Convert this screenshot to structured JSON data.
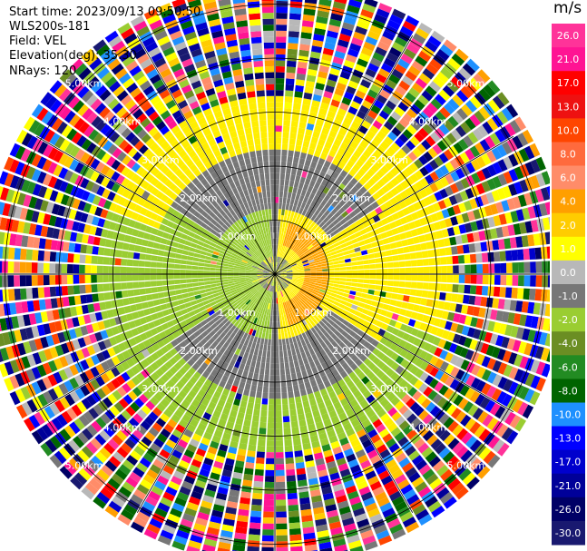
{
  "header": {
    "start_time": "Start time: 2023/09/13 09:50:50",
    "site": "WLS200s-181",
    "field": "Field: VEL",
    "elevation": "Elevation(deg): 35.30",
    "nrays": "NRays: 120"
  },
  "colorbar": {
    "unit": "m/s",
    "labels": [
      "26.0",
      "21.0",
      "17.0",
      "13.0",
      "10.0",
      "8.0",
      "6.0",
      "4.0",
      "2.0",
      "1.0",
      "0.0",
      "-1.0",
      "-2.0",
      "-4.0",
      "-6.0",
      "-8.0",
      "-10.0",
      "-13.0",
      "-17.0",
      "-21.0",
      "-26.0",
      "-30.0"
    ],
    "colors": [
      "#ff3399",
      "#ff1493",
      "#ff0000",
      "#ee1111",
      "#ff4500",
      "#ff6a3d",
      "#ff8c69",
      "#ff9f00",
      "#ffcc00",
      "#ffff00",
      "#b8b8b8",
      "#777777",
      "#9acd32",
      "#6b8e23",
      "#228b22",
      "#006400",
      "#1e90ff",
      "#0000ff",
      "#0000cd",
      "#000099",
      "#000066",
      "#191970"
    ]
  },
  "chart_data": {
    "type": "heatmap",
    "projection": "PPI (polar)",
    "field": "VEL",
    "unit": "m/s",
    "n_rays": 120,
    "range_rings_km": [
      1.0,
      2.0,
      3.0,
      4.0,
      5.0
    ],
    "ring_labels": [
      "1.00km",
      "2.00km",
      "3.00km",
      "4.00km",
      "5.00km"
    ],
    "value_range": [
      -30.0,
      26.0
    ],
    "field_summary": [
      {
        "range_km": [
          0.0,
          0.3
        ],
        "direction": "all",
        "value": 0.0
      },
      {
        "range_km": [
          0.3,
          2.4
        ],
        "direction": "east",
        "value": 2.0
      },
      {
        "range_km": [
          0.3,
          2.4
        ],
        "direction": "west",
        "value": -2.0
      },
      {
        "range_km": [
          0.5,
          1.0
        ],
        "direction": "east",
        "value": 4.0
      },
      {
        "range_km": [
          1.3,
          2.3
        ],
        "direction": "north",
        "value": 0.0
      },
      {
        "range_km": [
          1.3,
          2.3
        ],
        "direction": "south",
        "value": 0.0
      },
      {
        "range_km": [
          2.4,
          3.3
        ],
        "direction": "north",
        "value": 2.0
      },
      {
        "range_km": [
          2.4,
          3.3
        ],
        "direction": "south",
        "value": -2.0
      },
      {
        "range_km": [
          3.3,
          5.5
        ],
        "direction": "all",
        "value": "noise"
      }
    ]
  }
}
